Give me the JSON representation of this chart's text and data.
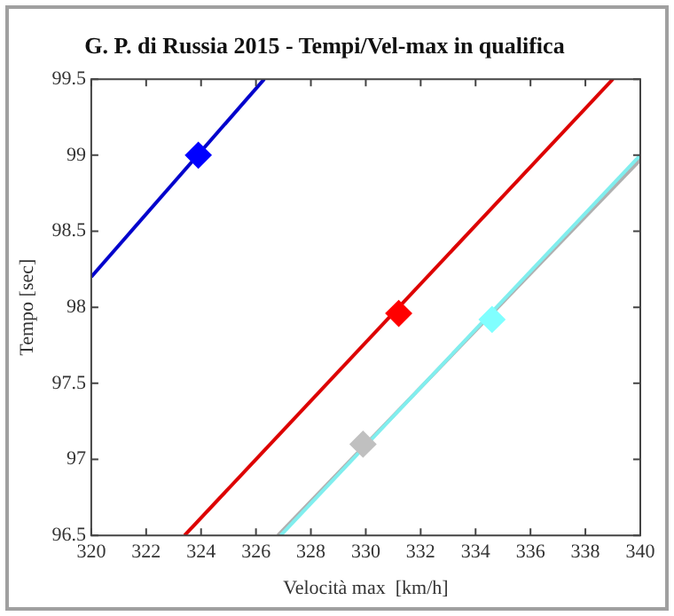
{
  "chart_data": {
    "type": "line",
    "title": "G. P. di Russia 2015 - Tempi/Vel-max in qualifica",
    "xlabel": "Velocità max  [km/h]",
    "ylabel": "Tempo [sec]",
    "xlim": [
      320,
      340
    ],
    "xticks": [
      320,
      322,
      324,
      326,
      328,
      330,
      332,
      334,
      336,
      338,
      340
    ],
    "ylim": [
      96.5,
      99.5
    ],
    "yticks": [
      96.5,
      97,
      97.5,
      98,
      98.5,
      99,
      99.5
    ],
    "grid": false,
    "legend": false,
    "line_style": "solid",
    "series": [
      {
        "color": "#0000cc",
        "x": [
          320,
          326.3
        ],
        "values": [
          98.2,
          99.5
        ]
      },
      {
        "color": "#dd0000",
        "x": [
          323.4,
          339.0
        ],
        "values": [
          96.5,
          99.5
        ]
      },
      {
        "color": "#80eeee",
        "x": [
          326.9,
          340
        ],
        "values": [
          96.5,
          99.0
        ]
      },
      {
        "color": "#b0b0b0",
        "x": [
          326.8,
          340
        ],
        "values": [
          96.5,
          98.97
        ]
      },
      {
        "type": "scatter",
        "marker": "diamond",
        "color": "#0000ff",
        "x": [
          323.9
        ],
        "values": [
          99.0
        ]
      },
      {
        "type": "scatter",
        "marker": "diamond",
        "color": "#ff0000",
        "x": [
          331.2
        ],
        "values": [
          97.96
        ]
      },
      {
        "type": "scatter",
        "marker": "diamond",
        "color": "#c0c0c0",
        "x": [
          329.9
        ],
        "values": [
          97.1
        ]
      },
      {
        "type": "scatter",
        "marker": "diamond",
        "color": "#80ffff",
        "x": [
          334.6
        ],
        "values": [
          97.92
        ]
      }
    ]
  }
}
